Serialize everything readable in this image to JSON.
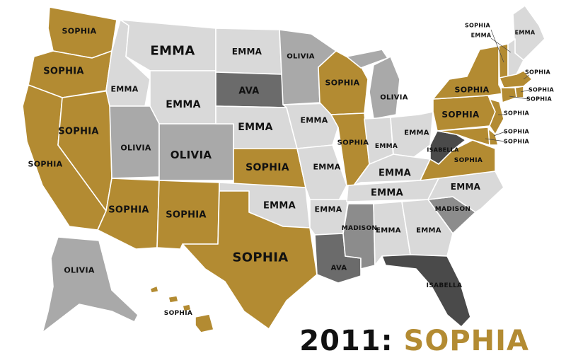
{
  "title": {
    "year": "2011:",
    "name": "SOPHIA"
  },
  "colors": {
    "SOPHIA": "#b38b32",
    "EMMA": "#d9d9d9",
    "OLIVIA": "#a9a9a9",
    "MADISON": "#8c8c8c",
    "AVA": "#6b6b6b",
    "ISABELLA": "#4a4a4a"
  },
  "labels": {
    "wa": "SOPHIA",
    "or": "SOPHIA",
    "ca": "SOPHIA",
    "nv": "SOPHIA",
    "id": "EMMA",
    "mt": "EMMA",
    "wy": "EMMA",
    "ut": "OLIVIA",
    "co": "OLIVIA",
    "az": "SOPHIA",
    "nm": "SOPHIA",
    "nd": "EMMA",
    "sd": "AVA",
    "ne": "EMMA",
    "ks": "SOPHIA",
    "ok": "EMMA",
    "tx": "SOPHIA",
    "mn": "OLIVIA",
    "ia": "EMMA",
    "mo": "EMMA",
    "ar": "EMMA",
    "la": "AVA",
    "wi": "SOPHIA",
    "il": "SOPHIA",
    "mi": "OLIVIA",
    "in": "EMMA",
    "oh": "EMMA",
    "ky": "EMMA",
    "tn": "EMMA",
    "ms": "MADISON",
    "al": "EMMA",
    "ga": "EMMA",
    "fl": "ISABELLA",
    "sc": "MADISON",
    "nc": "EMMA",
    "va": "SOPHIA",
    "wv": "ISABELLA",
    "pa": "SOPHIA",
    "ny": "SOPHIA",
    "me": "EMMA",
    "vt": "SOPHIA",
    "nh": "EMMA",
    "ma": "SOPHIA",
    "ri": "SOPHIA",
    "ct": "SOPHIA",
    "nj": "SOPHIA",
    "de": "SOPHIA",
    "md": "SOPHIA",
    "ak": "OLIVIA",
    "hi": "SOPHIA"
  }
}
